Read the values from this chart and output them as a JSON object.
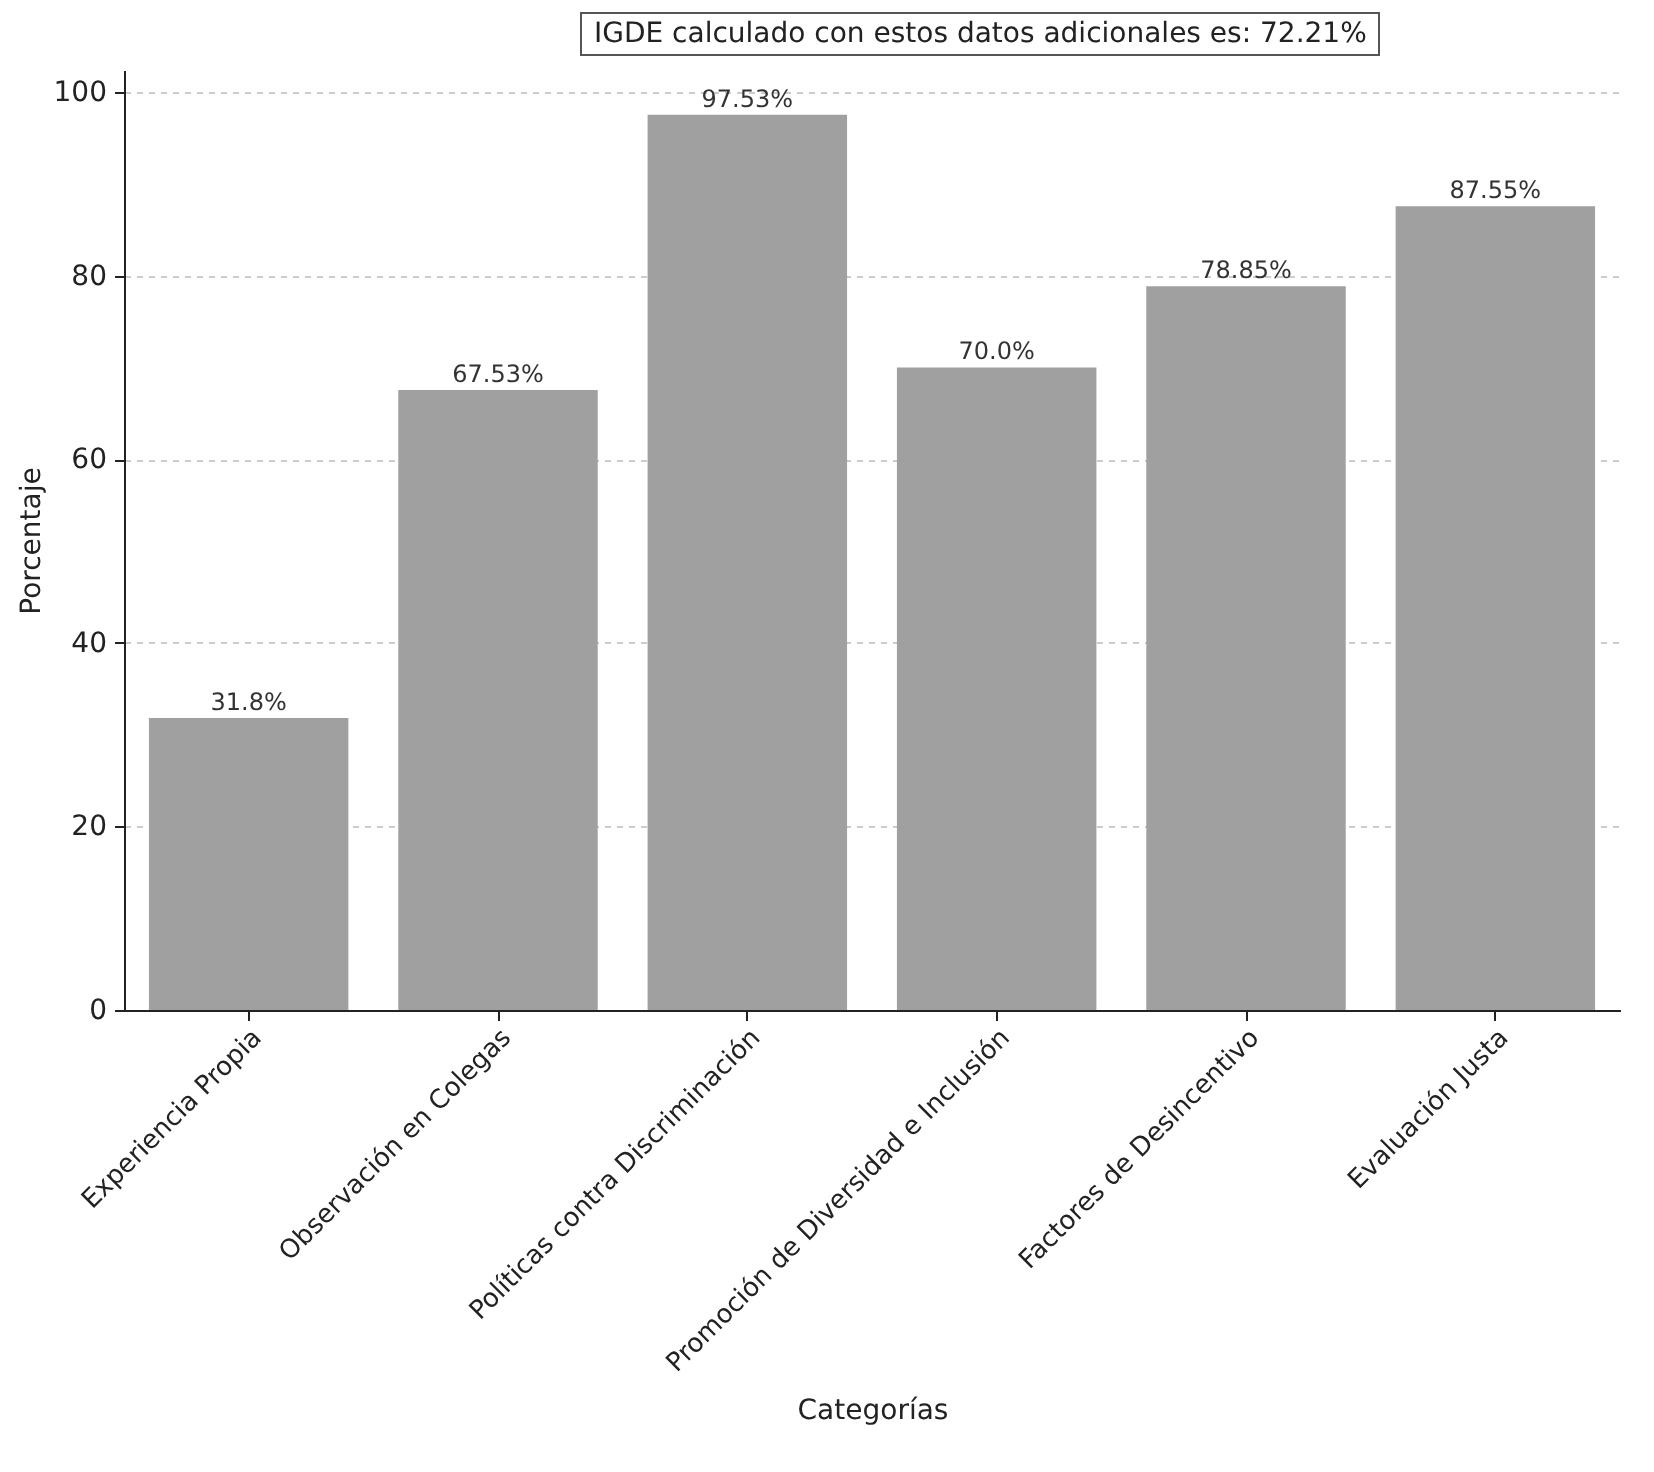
{
  "chart_data": {
    "type": "bar",
    "xlabel": "Categorías",
    "ylabel": "Porcentaje",
    "annotations": [
      "IGDE calculado con estos datos adicionales es: 72.21%"
    ],
    "categories": [
      "Experiencia Propia",
      "Observación en Colegas",
      "Políticas contra Discriminación",
      "Promoción de Diversidad e Inclusión",
      "Factores de Desincentivo",
      "Evaluación Justa"
    ],
    "values": [
      31.8,
      67.53,
      97.53,
      70.0,
      78.85,
      87.55
    ],
    "value_labels": [
      "31.8%",
      "67.53%",
      "97.53%",
      "70.0%",
      "78.85%",
      "87.55%"
    ],
    "color": "#a0a0a0",
    "ylim": [
      0,
      102.4
    ],
    "yticks": [
      0,
      20,
      40,
      60,
      80,
      100
    ],
    "grid": "y"
  }
}
